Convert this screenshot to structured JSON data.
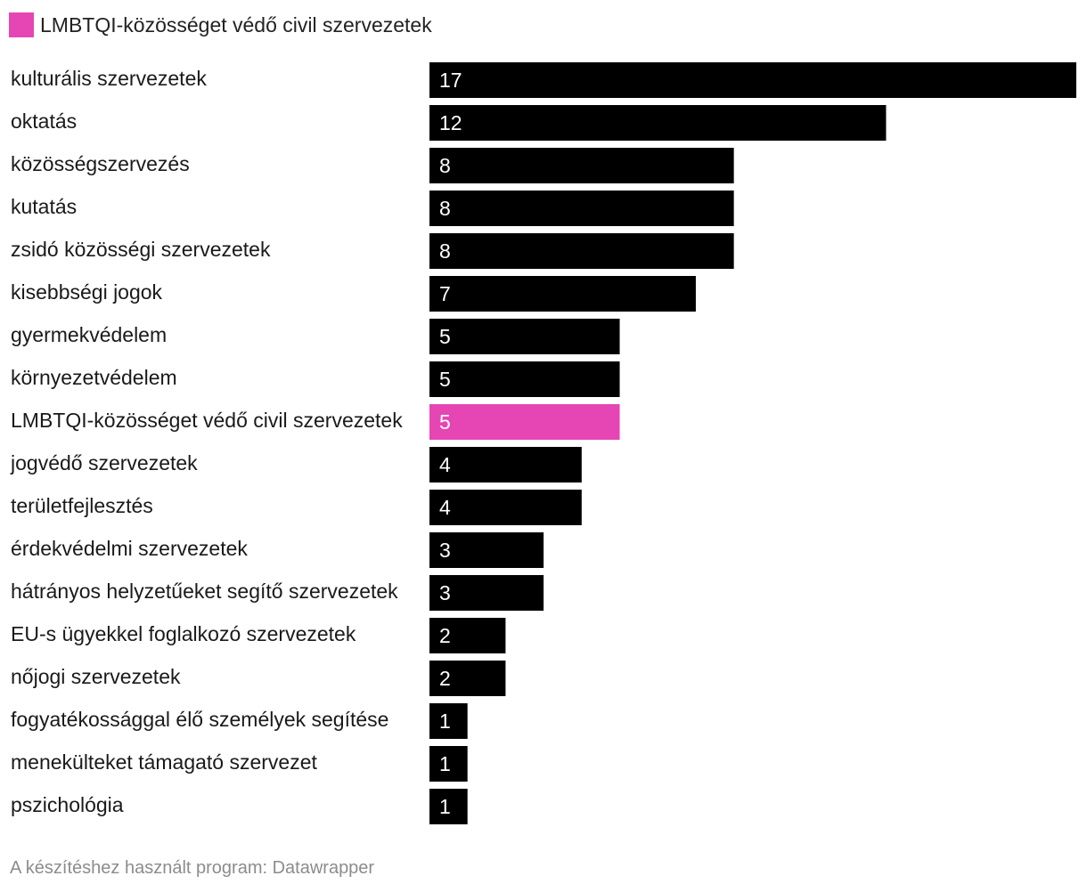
{
  "legend": {
    "label": "LMBTQI-közösséget védő civil szervezetek",
    "color": "#e645b4"
  },
  "footer": {
    "credit": "A készítéshez használt program: Datawrapper"
  },
  "chart_data": {
    "type": "bar",
    "orientation": "horizontal",
    "categories": [
      "kulturális szervezetek",
      "oktatás",
      "közösségszervezés",
      "kutatás",
      "zsidó közösségi szervezetek",
      "kisebbségi jogok",
      "gyermekvédelem",
      "környezetvédelem",
      "LMBTQI-közösséget védő civil szervezetek",
      "jogvédő szervezetek",
      "területfejlesztés",
      "érdekvédelmi szervezetek",
      "hátrányos helyzetűeket segítő szervezetek",
      "EU-s ügyekkel foglalkozó szervezetek",
      "nőjogi szervezetek",
      "fogyatékossággal élő személyek segítése",
      "menekülteket támagató szervezet",
      "pszichológia"
    ],
    "values": [
      17,
      12,
      8,
      8,
      8,
      7,
      5,
      5,
      5,
      4,
      4,
      3,
      3,
      2,
      2,
      1,
      1,
      1
    ],
    "highlight_index": 8,
    "default_color": "#000000",
    "highlight_color": "#e645b4",
    "value_label_color": "#ffffff",
    "xlim": [
      0,
      17
    ],
    "grid": false
  }
}
